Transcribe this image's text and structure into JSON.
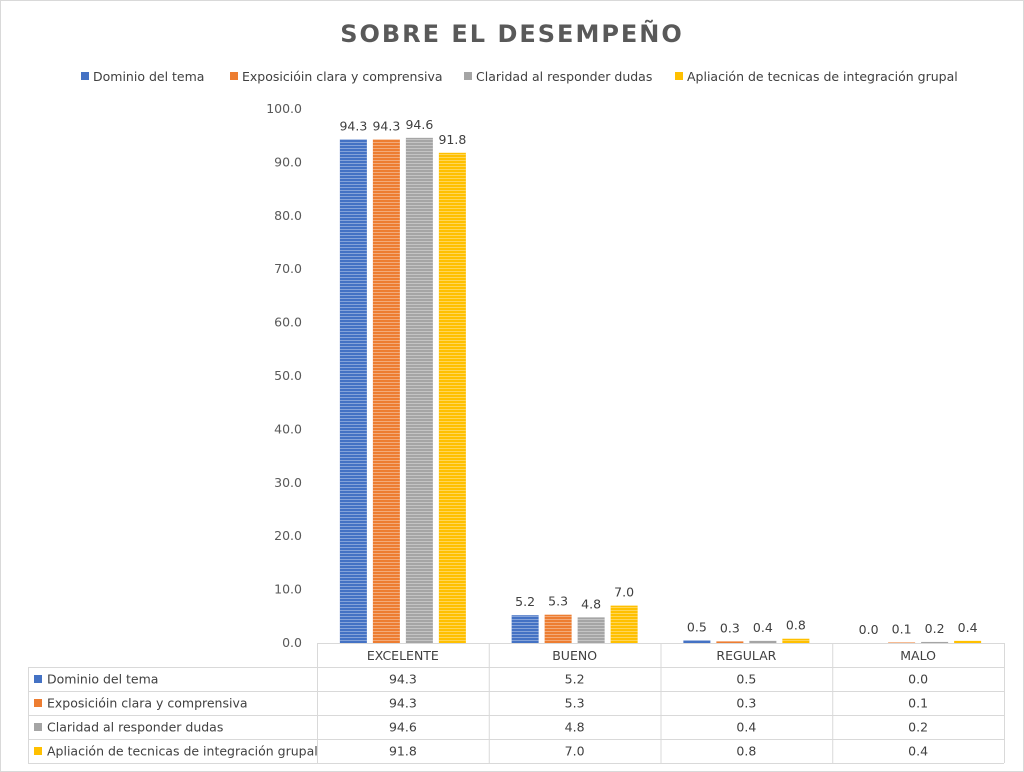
{
  "chart_data": {
    "type": "bar",
    "title": "SOBRE EL DESEMPEÑO",
    "categories": [
      "EXCELENTE",
      "BUENO",
      "REGULAR",
      "MALO"
    ],
    "series": [
      {
        "name": "Dominio del tema",
        "color": "#4472C4",
        "values": [
          94.3,
          5.2,
          0.5,
          0.0
        ]
      },
      {
        "name": "Exposicióin clara y comprensiva",
        "color": "#ED7D31",
        "values": [
          94.3,
          5.3,
          0.3,
          0.1
        ]
      },
      {
        "name": "Claridad al responder dudas",
        "color": "#A5A5A5",
        "values": [
          94.6,
          4.8,
          0.4,
          0.2
        ]
      },
      {
        "name": "Apliación de tecnicas de integración grupal",
        "color": "#FFC000",
        "values": [
          91.8,
          7.0,
          0.8,
          0.4
        ]
      }
    ],
    "ylim": [
      0,
      100
    ],
    "yticks": [
      "0.0",
      "10.0",
      "20.0",
      "30.0",
      "40.0",
      "50.0",
      "60.0",
      "70.0",
      "80.0",
      "90.0",
      "100.0"
    ],
    "legend": "top",
    "data_table": true,
    "grid": false
  }
}
